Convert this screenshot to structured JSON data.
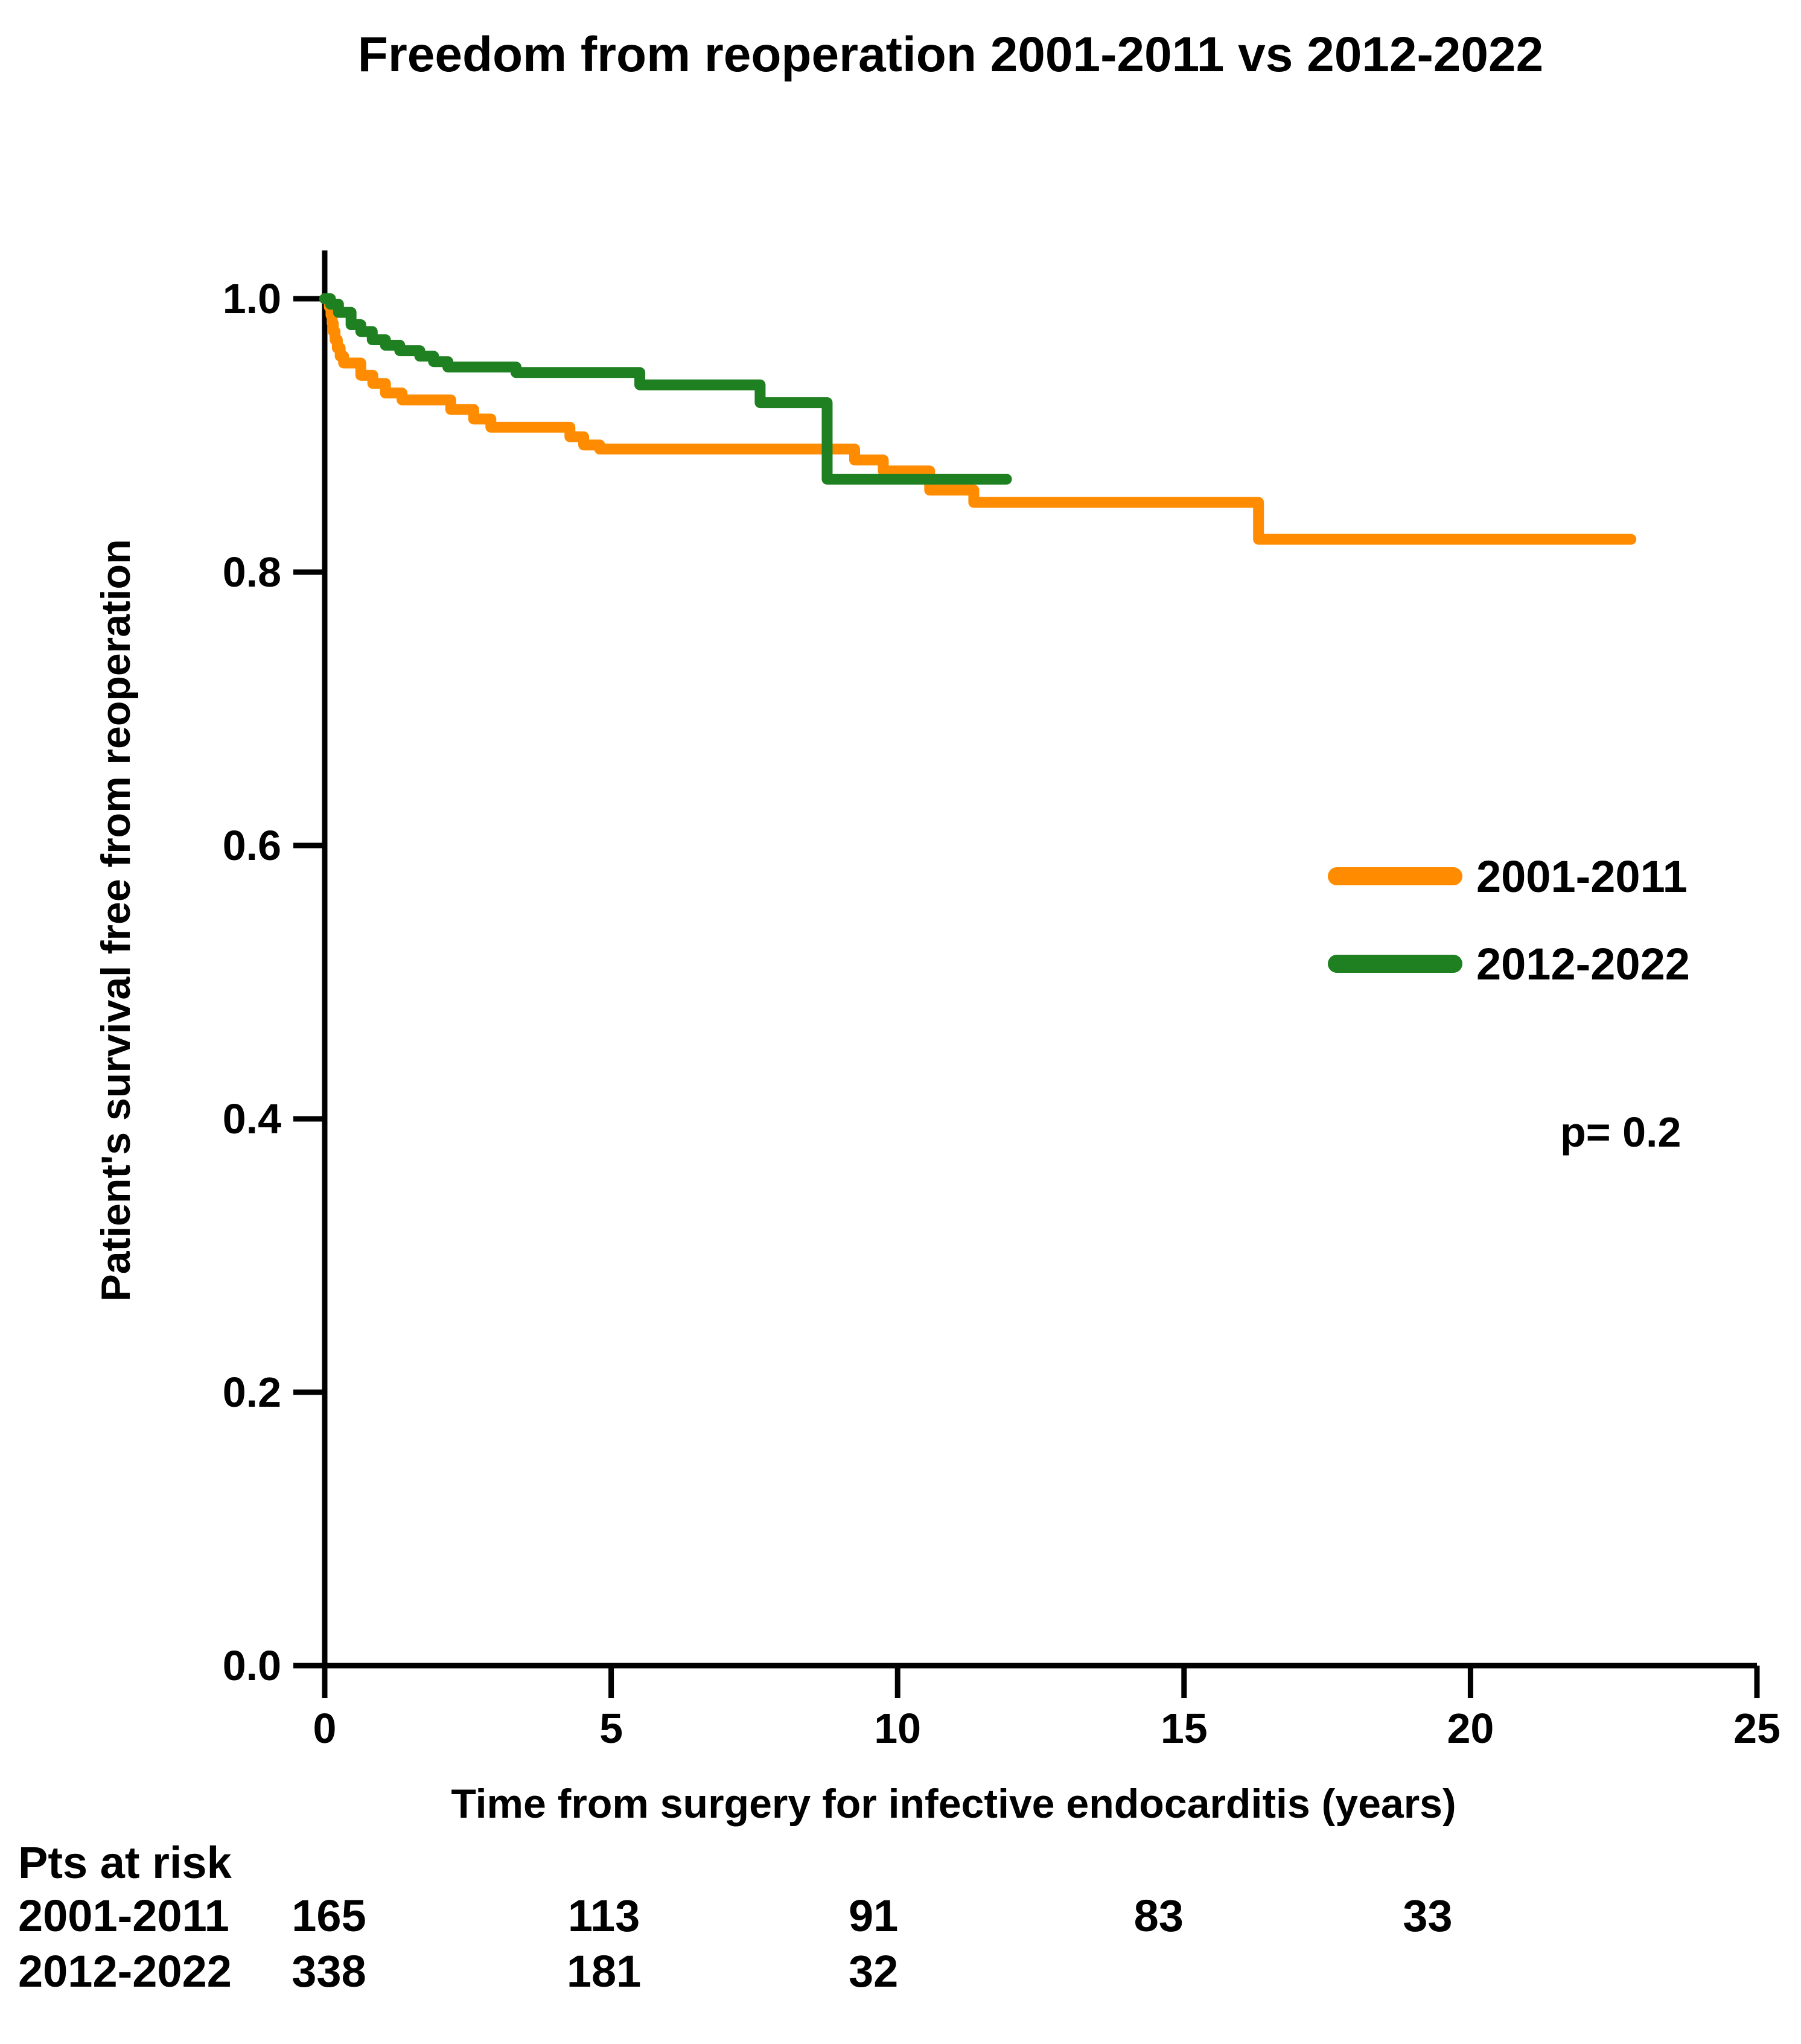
{
  "figure": {
    "background": "#FFFFFF",
    "axis_color": "#000000",
    "text_color": "#000000"
  },
  "chart_data": {
    "type": "line",
    "subtype": "kaplan-meier-step",
    "title": "Freedom from reoperation 2001-2011 vs 2012-2022",
    "xlabel": "Time from surgery for infective endocarditis (years)",
    "ylabel": "Patient's survival free from reoperation",
    "xlim": [
      0,
      25
    ],
    "ylim": [
      0.0,
      1.0
    ],
    "grid": false,
    "legend_position": "right-middle",
    "p_value_label": "p= 0.2",
    "x_tick_values": [
      0,
      5,
      10,
      15,
      20,
      25
    ],
    "x_tick_labels": [
      "0",
      "5",
      "10",
      "15",
      "20",
      "25"
    ],
    "y_tick_values": [
      1.0,
      0.8,
      0.6,
      0.4,
      0.2,
      0.0
    ],
    "y_tick_labels": [
      "1.0",
      "0.8",
      "0.6",
      "0.4",
      "0.2",
      "0.0"
    ],
    "series": [
      {
        "name": "2001-2011",
        "color": "#FF8C00",
        "end_time": 22.8,
        "points": [
          [
            0,
            1.0
          ],
          [
            0.08,
            0.994
          ],
          [
            0.11,
            0.988
          ],
          [
            0.13,
            0.982
          ],
          [
            0.15,
            0.976
          ],
          [
            0.18,
            0.97
          ],
          [
            0.22,
            0.964
          ],
          [
            0.27,
            0.958
          ],
          [
            0.33,
            0.953
          ],
          [
            0.63,
            0.944
          ],
          [
            0.84,
            0.938
          ],
          [
            1.06,
            0.931
          ],
          [
            1.35,
            0.926
          ],
          [
            2.2,
            0.919
          ],
          [
            2.6,
            0.912
          ],
          [
            2.9,
            0.906
          ],
          [
            4.28,
            0.899
          ],
          [
            4.52,
            0.893
          ],
          [
            4.8,
            0.89
          ],
          [
            9.25,
            0.882
          ],
          [
            9.75,
            0.874
          ],
          [
            10.56,
            0.86
          ],
          [
            11.33,
            0.851
          ],
          [
            16.3,
            0.824
          ]
        ]
      },
      {
        "name": "2012-2022",
        "color": "#1E8020",
        "end_time": 11.9,
        "points": [
          [
            0,
            1.0
          ],
          [
            0.1,
            0.996
          ],
          [
            0.24,
            0.99
          ],
          [
            0.46,
            0.981
          ],
          [
            0.63,
            0.976
          ],
          [
            0.83,
            0.97
          ],
          [
            1.06,
            0.966
          ],
          [
            1.31,
            0.962
          ],
          [
            1.66,
            0.958
          ],
          [
            1.9,
            0.954
          ],
          [
            2.15,
            0.95
          ],
          [
            3.34,
            0.946
          ],
          [
            5.5,
            0.937
          ],
          [
            7.6,
            0.924
          ],
          [
            8.77,
            0.868
          ]
        ]
      }
    ],
    "risk_table": {
      "header": "Pts at risk",
      "time_points": [
        0,
        5,
        10,
        15,
        20
      ],
      "rows": [
        {
          "label": "2001-2011",
          "counts": [
            "165",
            "113",
            "91",
            "83",
            "33"
          ]
        },
        {
          "label": "2012-2022",
          "counts": [
            "338",
            "181",
            "32"
          ]
        }
      ]
    }
  }
}
